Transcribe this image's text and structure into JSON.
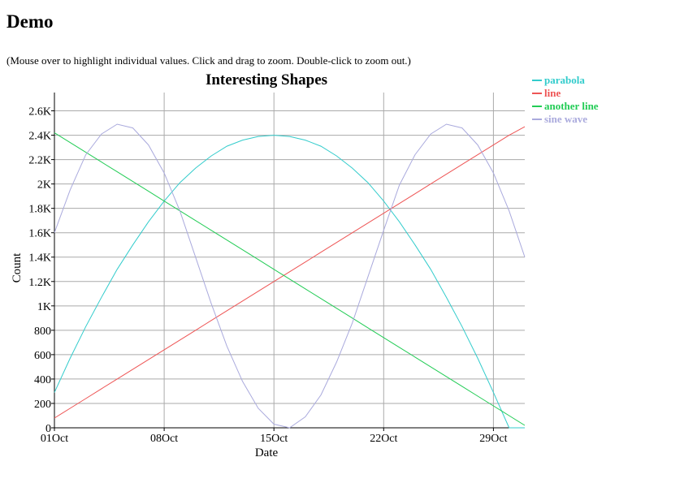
{
  "page": {
    "title": "Demo",
    "instructions": "(Mouse over to highlight individual values. Click and drag to zoom. Double-click to zoom out.)"
  },
  "chart_data": {
    "type": "line",
    "title": "Interesting Shapes",
    "xlabel": "Date",
    "ylabel": "Count",
    "x_type": "date",
    "xlim": [
      "2012-10-01",
      "2012-10-31"
    ],
    "ylim": [
      0,
      2750
    ],
    "grid": true,
    "legend_position": "top-right",
    "x_ticks": [
      {
        "date": "2012-10-01",
        "label": "01Oct"
      },
      {
        "date": "2012-10-08",
        "label": "08Oct"
      },
      {
        "date": "2012-10-15",
        "label": "15Oct"
      },
      {
        "date": "2012-10-22",
        "label": "22Oct"
      },
      {
        "date": "2012-10-29",
        "label": "29Oct"
      }
    ],
    "y_ticks": [
      {
        "value": 0,
        "label": "0"
      },
      {
        "value": 200,
        "label": "200"
      },
      {
        "value": 400,
        "label": "400"
      },
      {
        "value": 600,
        "label": "600"
      },
      {
        "value": 800,
        "label": "800"
      },
      {
        "value": 1000,
        "label": "1K"
      },
      {
        "value": 1200,
        "label": "1.2K"
      },
      {
        "value": 1400,
        "label": "1.4K"
      },
      {
        "value": 1600,
        "label": "1.6K"
      },
      {
        "value": 1800,
        "label": "1.8K"
      },
      {
        "value": 2000,
        "label": "2K"
      },
      {
        "value": 2200,
        "label": "2.2K"
      },
      {
        "value": 2400,
        "label": "2.4K"
      },
      {
        "value": 2600,
        "label": "2.6K"
      }
    ],
    "x": [
      "2012-10-01",
      "2012-10-02",
      "2012-10-03",
      "2012-10-04",
      "2012-10-05",
      "2012-10-06",
      "2012-10-07",
      "2012-10-08",
      "2012-10-09",
      "2012-10-10",
      "2012-10-11",
      "2012-10-12",
      "2012-10-13",
      "2012-10-14",
      "2012-10-15",
      "2012-10-16",
      "2012-10-17",
      "2012-10-18",
      "2012-10-19",
      "2012-10-20",
      "2012-10-21",
      "2012-10-22",
      "2012-10-23",
      "2012-10-24",
      "2012-10-25",
      "2012-10-26",
      "2012-10-27",
      "2012-10-28",
      "2012-10-29",
      "2012-10-30",
      "2012-10-31"
    ],
    "series": [
      {
        "name": "parabola",
        "color": "#33cccc",
        "values": [
          290,
          570,
          830,
          1070,
          1300,
          1500,
          1690,
          1860,
          2010,
          2130,
          2230,
          2310,
          2360,
          2390,
          2400,
          2390,
          2360,
          2310,
          2230,
          2130,
          2010,
          1860,
          1690,
          1500,
          1300,
          1070,
          830,
          570,
          290,
          0,
          0
        ]
      },
      {
        "name": "line",
        "color": "#ee5555",
        "values": [
          80,
          160,
          240,
          320,
          400,
          480,
          560,
          640,
          720,
          800,
          880,
          960,
          1040,
          1120,
          1200,
          1280,
          1360,
          1440,
          1520,
          1600,
          1680,
          1760,
          1840,
          1920,
          2000,
          2080,
          2160,
          2240,
          2320,
          2400,
          2470
        ]
      },
      {
        "name": "another line",
        "color": "#22cc55",
        "values": [
          2420,
          2340,
          2260,
          2180,
          2100,
          2020,
          1940,
          1860,
          1780,
          1700,
          1620,
          1540,
          1460,
          1380,
          1300,
          1220,
          1140,
          1060,
          980,
          900,
          820,
          740,
          660,
          580,
          500,
          420,
          340,
          260,
          180,
          100,
          20
        ]
      },
      {
        "name": "sine wave",
        "color": "#aaaadd",
        "values": [
          1600,
          1950,
          2240,
          2410,
          2490,
          2460,
          2320,
          2090,
          1780,
          1400,
          1020,
          670,
          380,
          160,
          30,
          0,
          90,
          270,
          540,
          860,
          1240,
          1620,
          1990,
          2240,
          2410,
          2490,
          2460,
          2320,
          2090,
          1780,
          1400
        ]
      }
    ]
  }
}
